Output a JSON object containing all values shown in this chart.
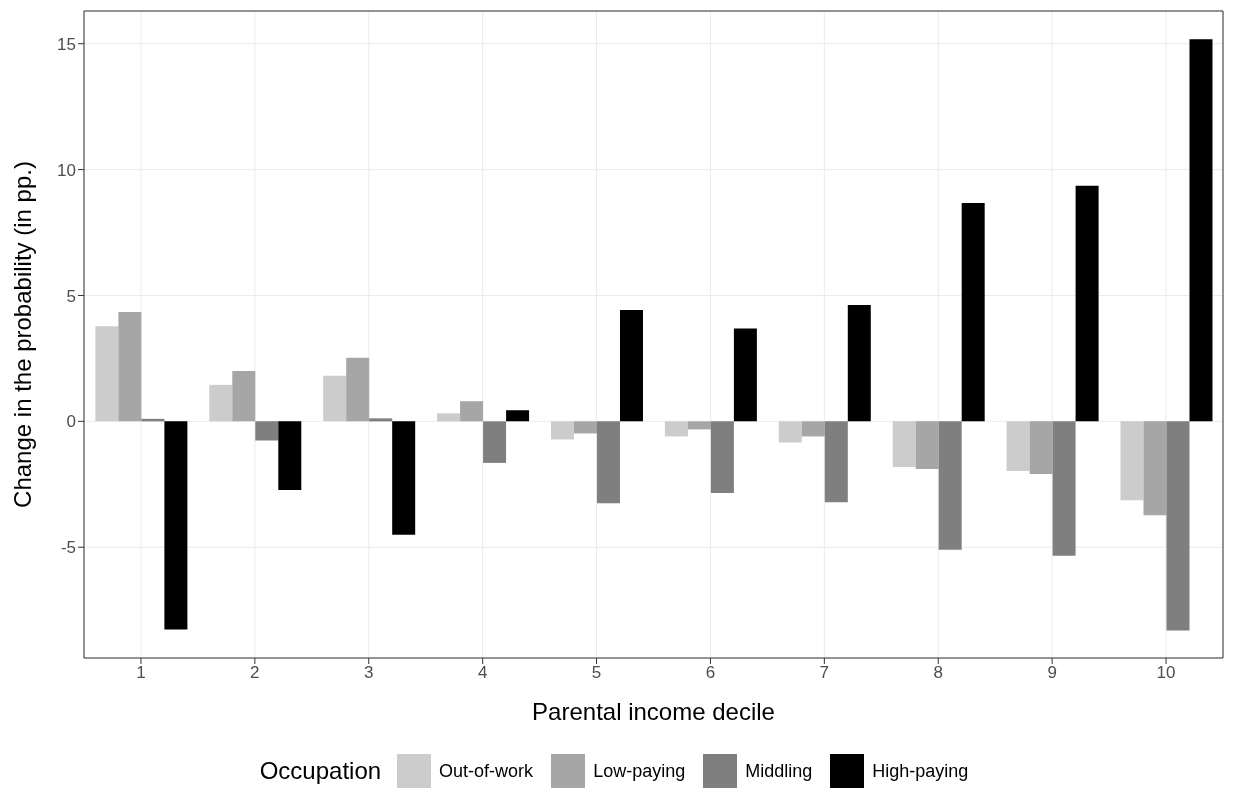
{
  "chart_data": {
    "type": "bar",
    "xlabel": "Parental income decile",
    "ylabel": "Change in the probability (in pp.)",
    "legend_title": "Occupation",
    "legend": "bottom",
    "grid": true,
    "categories": [
      "1",
      "2",
      "3",
      "4",
      "5",
      "6",
      "7",
      "8",
      "9",
      "10"
    ],
    "ylim": [
      -9.4,
      16.3
    ],
    "yticks": [
      -5,
      0,
      5,
      10,
      15
    ],
    "series": [
      {
        "name": "Out-of-work",
        "color": "#cccccc",
        "values": [
          3.78,
          1.45,
          1.81,
          0.32,
          -0.72,
          -0.6,
          -0.84,
          -1.81,
          -1.97,
          -3.13
        ]
      },
      {
        "name": "Low-paying",
        "color": "#a6a6a6",
        "values": [
          4.34,
          2.0,
          2.53,
          0.8,
          -0.48,
          -0.32,
          -0.6,
          -1.89,
          -2.09,
          -3.73
        ]
      },
      {
        "name": "Middling",
        "color": "#7f7f7f",
        "values": [
          0.1,
          -0.76,
          0.12,
          -1.65,
          -3.25,
          -2.85,
          -3.21,
          -5.1,
          -5.34,
          -8.31
        ]
      },
      {
        "name": "High-paying",
        "color": "#000000",
        "values": [
          -8.27,
          -2.73,
          -4.5,
          0.44,
          4.42,
          3.69,
          4.62,
          8.67,
          9.36,
          15.18
        ]
      }
    ]
  }
}
